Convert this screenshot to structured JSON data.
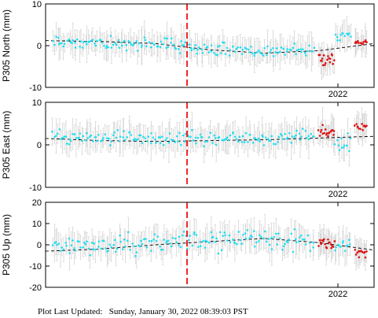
{
  "footer": {
    "label": "Plot Last Updated:",
    "timestamp": "Sunday, January 30, 2022 08:39:03 PST"
  },
  "chart_data": [
    {
      "type": "scatter",
      "ylabel": "P305 North (mm)",
      "ylim": [
        -10,
        10
      ],
      "yticks": [
        "10",
        "0",
        "-10"
      ],
      "xtick_label": "2022",
      "event_marker_color": "#ee1111",
      "trend": [
        1.2,
        1.0,
        0.5,
        -1.0,
        -1.8,
        -1.2,
        0.5
      ],
      "series": [
        {
          "color": "#22ddee",
          "segments": [
            {
              "start": 0.02,
              "end": 0.82,
              "n": 170,
              "center": 0,
              "noise": 1.6
            }
          ]
        },
        {
          "color": "#dd1111",
          "segments": [
            {
              "start": 0.83,
              "end": 0.88,
              "n": 18,
              "center": -2.5,
              "noise": 1.2
            },
            {
              "start": 0.94,
              "end": 0.98,
              "n": 12,
              "center": 0.8,
              "noise": 0.8
            }
          ]
        },
        {
          "color": "#22ddee",
          "segments": [
            {
              "start": 0.88,
              "end": 0.93,
              "n": 12,
              "center": 2.5,
              "noise": 1.5
            }
          ]
        }
      ]
    },
    {
      "type": "scatter",
      "ylabel": "P305 East (mm)",
      "ylim": [
        -10,
        10
      ],
      "yticks": [
        "10",
        "0",
        "-10"
      ],
      "xtick_label": "2022",
      "event_marker_color": "#ee1111",
      "trend": [
        1.5,
        1.0,
        0.8,
        1.0,
        1.2,
        1.6,
        2.0
      ],
      "series": [
        {
          "color": "#22ddee",
          "segments": [
            {
              "start": 0.02,
              "end": 0.82,
              "n": 170,
              "center": 1.0,
              "noise": 1.8
            }
          ]
        },
        {
          "color": "#dd1111",
          "segments": [
            {
              "start": 0.83,
              "end": 0.88,
              "n": 18,
              "center": 2.2,
              "noise": 1.2
            },
            {
              "start": 0.94,
              "end": 0.98,
              "n": 12,
              "center": 3.2,
              "noise": 1.2
            }
          ]
        },
        {
          "color": "#22ddee",
          "segments": [
            {
              "start": 0.88,
              "end": 0.93,
              "n": 12,
              "center": -0.5,
              "noise": 2.0
            }
          ]
        }
      ]
    },
    {
      "type": "scatter",
      "ylabel": "P305 Up (mm)",
      "ylim": [
        -20,
        20
      ],
      "yticks": [
        "20",
        "10",
        "0",
        "-10",
        "-20"
      ],
      "xtick_label": "2022",
      "event_marker_color": "#ee1111",
      "trend": [
        -3.0,
        -2.0,
        0.0,
        1.5,
        3.0,
        1.0,
        -2.5
      ],
      "series": [
        {
          "color": "#22ddee",
          "segments": [
            {
              "start": 0.02,
              "end": 0.82,
              "n": 170,
              "center": 1.0,
              "noise": 5.0
            }
          ]
        },
        {
          "color": "#dd1111",
          "segments": [
            {
              "start": 0.83,
              "end": 0.88,
              "n": 18,
              "center": 0.0,
              "noise": 3.5
            },
            {
              "start": 0.94,
              "end": 0.98,
              "n": 12,
              "center": -3.0,
              "noise": 3.0
            }
          ]
        },
        {
          "color": "#22ddee",
          "segments": [
            {
              "start": 0.88,
              "end": 0.93,
              "n": 12,
              "center": 0.5,
              "noise": 4.0
            }
          ]
        }
      ]
    }
  ]
}
